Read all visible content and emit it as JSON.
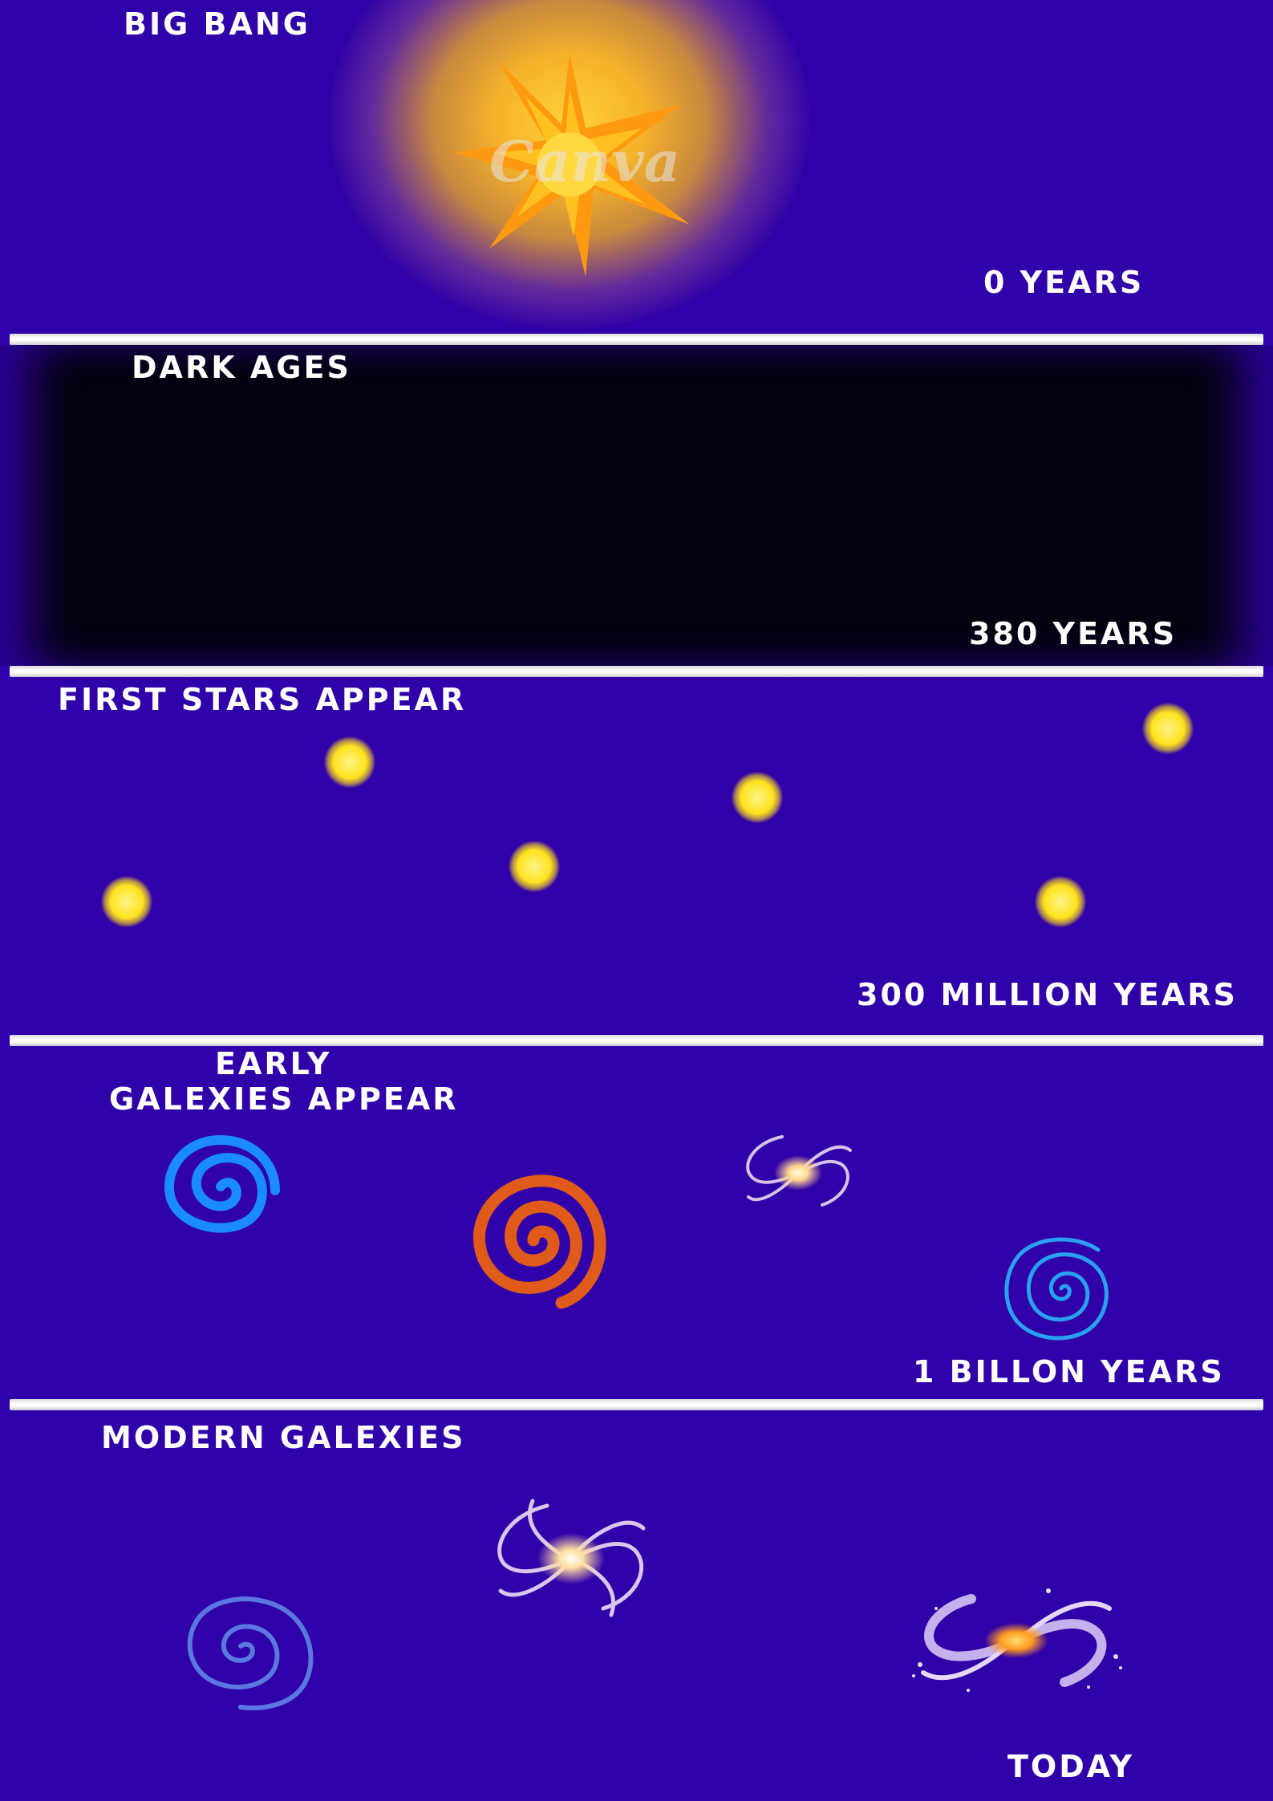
{
  "sections": {
    "big_bang": {
      "title": "BIG BANG",
      "time": "0 YEARS",
      "watermark": "Canva"
    },
    "dark_ages": {
      "title": "DARK AGES",
      "time": "380 YEARS"
    },
    "first_stars": {
      "title": "FIRST STARS APPEAR",
      "time": "300 MILLION YEARS"
    },
    "early_galaxies": {
      "title_line1": "EARLY",
      "title_line2": "GALEXIES APPEAR",
      "time": "1 BILLON YEARS"
    },
    "modern_galaxies": {
      "title": "MODERN GALEXIES",
      "time": "TODAY"
    }
  },
  "colors": {
    "background": "#3000a8",
    "dark_ages": "#05030f",
    "star": "#ffe21a",
    "burst": "#ff9a10",
    "spiral_blue": "#1a8cff",
    "spiral_orange": "#e05a1a",
    "spiral_lightblue": "#2aa0f0",
    "spiral_periwinkle": "#5a78e0"
  }
}
